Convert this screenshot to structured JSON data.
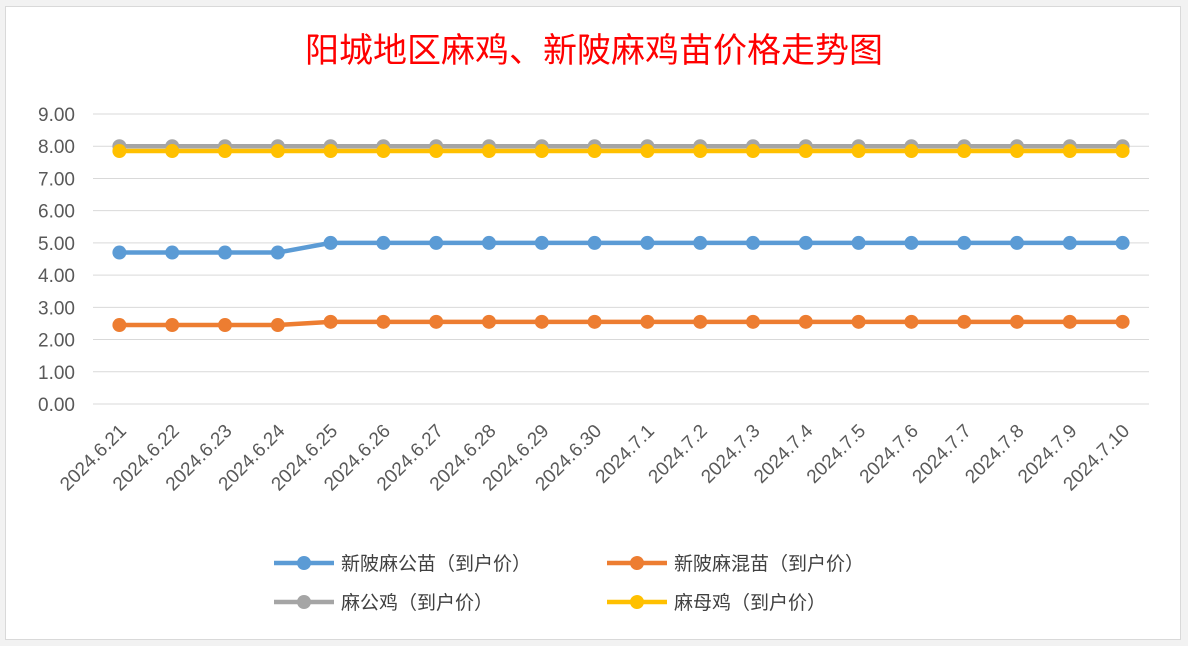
{
  "chart_data": {
    "type": "line",
    "title": "阳城地区麻鸡、新陂麻鸡苗价格走势图",
    "xlabel": "",
    "ylabel": "",
    "ylim": [
      0,
      9
    ],
    "y_ticks": [
      "0.00",
      "1.00",
      "2.00",
      "3.00",
      "4.00",
      "5.00",
      "6.00",
      "7.00",
      "8.00",
      "9.00"
    ],
    "grid": true,
    "legend_position": "bottom",
    "categories": [
      "2024.6.21",
      "2024.6.22",
      "2024.6.23",
      "2024.6.24",
      "2024.6.25",
      "2024.6.26",
      "2024.6.27",
      "2024.6.28",
      "2024.6.29",
      "2024.6.30",
      "2024.7.1",
      "2024.7.2",
      "2024.7.3",
      "2024.7.4",
      "2024.7.5",
      "2024.7.6",
      "2024.7.7",
      "2024.7.8",
      "2024.7.9",
      "2024.7.10"
    ],
    "series": [
      {
        "name": "新陂麻公苗（到户价）",
        "color": "#5b9bd5",
        "values": [
          4.7,
          4.7,
          4.7,
          4.7,
          5.0,
          5.0,
          5.0,
          5.0,
          5.0,
          5.0,
          5.0,
          5.0,
          5.0,
          5.0,
          5.0,
          5.0,
          5.0,
          5.0,
          5.0,
          5.0
        ]
      },
      {
        "name": "新陂麻混苗（到户价）",
        "color": "#ed7d31",
        "values": [
          2.45,
          2.45,
          2.45,
          2.45,
          2.55,
          2.55,
          2.55,
          2.55,
          2.55,
          2.55,
          2.55,
          2.55,
          2.55,
          2.55,
          2.55,
          2.55,
          2.55,
          2.55,
          2.55,
          2.55
        ]
      },
      {
        "name": "麻公鸡（到户价）",
        "color": "#a5a5a5",
        "values": [
          8.0,
          8.0,
          8.0,
          8.0,
          8.0,
          8.0,
          8.0,
          8.0,
          8.0,
          8.0,
          8.0,
          8.0,
          8.0,
          8.0,
          8.0,
          8.0,
          8.0,
          8.0,
          8.0,
          8.0
        ]
      },
      {
        "name": "麻母鸡（到户价）",
        "color": "#ffc000",
        "values": [
          7.85,
          7.85,
          7.85,
          7.85,
          7.85,
          7.85,
          7.85,
          7.85,
          7.85,
          7.85,
          7.85,
          7.85,
          7.85,
          7.85,
          7.85,
          7.85,
          7.85,
          7.85,
          7.85,
          7.85
        ]
      }
    ]
  }
}
